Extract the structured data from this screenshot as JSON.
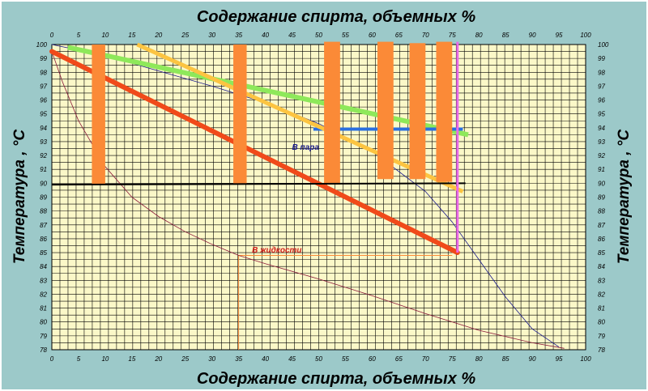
{
  "chart_data": {
    "type": "line",
    "title_top": "Содержание спирта, объемных %",
    "title_bottom": "Содержание спирта, объемных %",
    "ylabel_left": "Температура , °С",
    "ylabel_right": "Температура , °С",
    "xlim": [
      0,
      100
    ],
    "ylim": [
      78,
      100
    ],
    "x_ticks": [
      0,
      5,
      10,
      15,
      20,
      25,
      30,
      35,
      40,
      45,
      50,
      55,
      60,
      65,
      70,
      75,
      80,
      85,
      90,
      95,
      100
    ],
    "y_ticks": [
      78,
      79,
      80,
      81,
      82,
      83,
      84,
      85,
      86,
      87,
      88,
      89,
      90,
      91,
      92,
      93,
      94,
      95,
      96,
      97,
      98,
      99,
      100
    ],
    "grid": true,
    "colors": {
      "background": "#ffffff",
      "plot_area": "#fbf8c8",
      "grid": "#000000",
      "vapor_curve": "#1a1a8c",
      "liquid_curve": "#8b1a3a",
      "red_line": "#f04a1a",
      "orange_line": "#fcc441",
      "green_line": "#8ee85a",
      "blue_segment": "#2a6fe0",
      "magenta_line": "#ec6ae8",
      "black_line": "#000000",
      "orange_bars": "#fb8a37",
      "guide_line": "#fb8a37"
    },
    "annotations": [
      {
        "text": "В пара",
        "x": 45,
        "y": 92.4,
        "color": "#1a1a8c"
      },
      {
        "text": "В жидкости",
        "x": 37.5,
        "y": 85,
        "color": "#d0201a"
      }
    ],
    "series": [
      {
        "key": "vapor",
        "x": [
          0,
          10,
          20,
          30,
          40,
          50,
          60,
          70,
          75,
          80,
          85,
          90,
          95
        ],
        "y": [
          100,
          99.2,
          98.1,
          97,
          95.8,
          94.3,
          92.3,
          89.4,
          87.2,
          84.5,
          81.8,
          79.5,
          78.2
        ]
      },
      {
        "key": "liquid",
        "x": [
          0,
          2,
          5,
          10,
          15,
          20,
          25,
          30,
          35,
          40,
          50,
          60,
          70,
          80,
          90,
          96
        ],
        "y": [
          99.5,
          97.3,
          94.5,
          91.2,
          89,
          87.6,
          86.5,
          85.6,
          84.8,
          84.2,
          83.1,
          81.9,
          80.6,
          79.4,
          78.5,
          78.1
        ]
      },
      {
        "key": "red",
        "x": [
          0,
          76
        ],
        "y": [
          99.5,
          85
        ]
      },
      {
        "key": "orange",
        "x": [
          16,
          77
        ],
        "y": [
          100,
          89.4
        ]
      },
      {
        "key": "green",
        "x": [
          3,
          78
        ],
        "y": [
          99.8,
          93.5
        ]
      },
      {
        "key": "blue",
        "x": [
          49,
          77
        ],
        "y": [
          93.9,
          93.9
        ]
      },
      {
        "key": "magenta",
        "x": [
          76,
          76
        ],
        "y": [
          85,
          100.2
        ]
      },
      {
        "key": "black",
        "x": [
          0,
          77.5
        ],
        "y": [
          89.9,
          90
        ]
      },
      {
        "key": "guide_vertical",
        "x": [
          35,
          35
        ],
        "y": [
          78,
          84.8
        ]
      },
      {
        "key": "guide_horizontal",
        "x": [
          35,
          75
        ],
        "y": [
          84.8,
          84.8
        ]
      }
    ],
    "bars": [
      {
        "x": [
          7.5,
          10
        ],
        "y": [
          89.9,
          100
        ]
      },
      {
        "x": [
          34,
          36.5
        ],
        "y": [
          89.9,
          100
        ]
      },
      {
        "x": [
          51,
          54
        ],
        "y": [
          89.9,
          100.2
        ]
      },
      {
        "x": [
          61,
          64
        ],
        "y": [
          90.3,
          100.2
        ]
      },
      {
        "x": [
          67,
          70
        ],
        "y": [
          90.3,
          100.1
        ]
      },
      {
        "x": [
          72,
          75
        ],
        "y": [
          90.1,
          100.2
        ]
      }
    ]
  }
}
